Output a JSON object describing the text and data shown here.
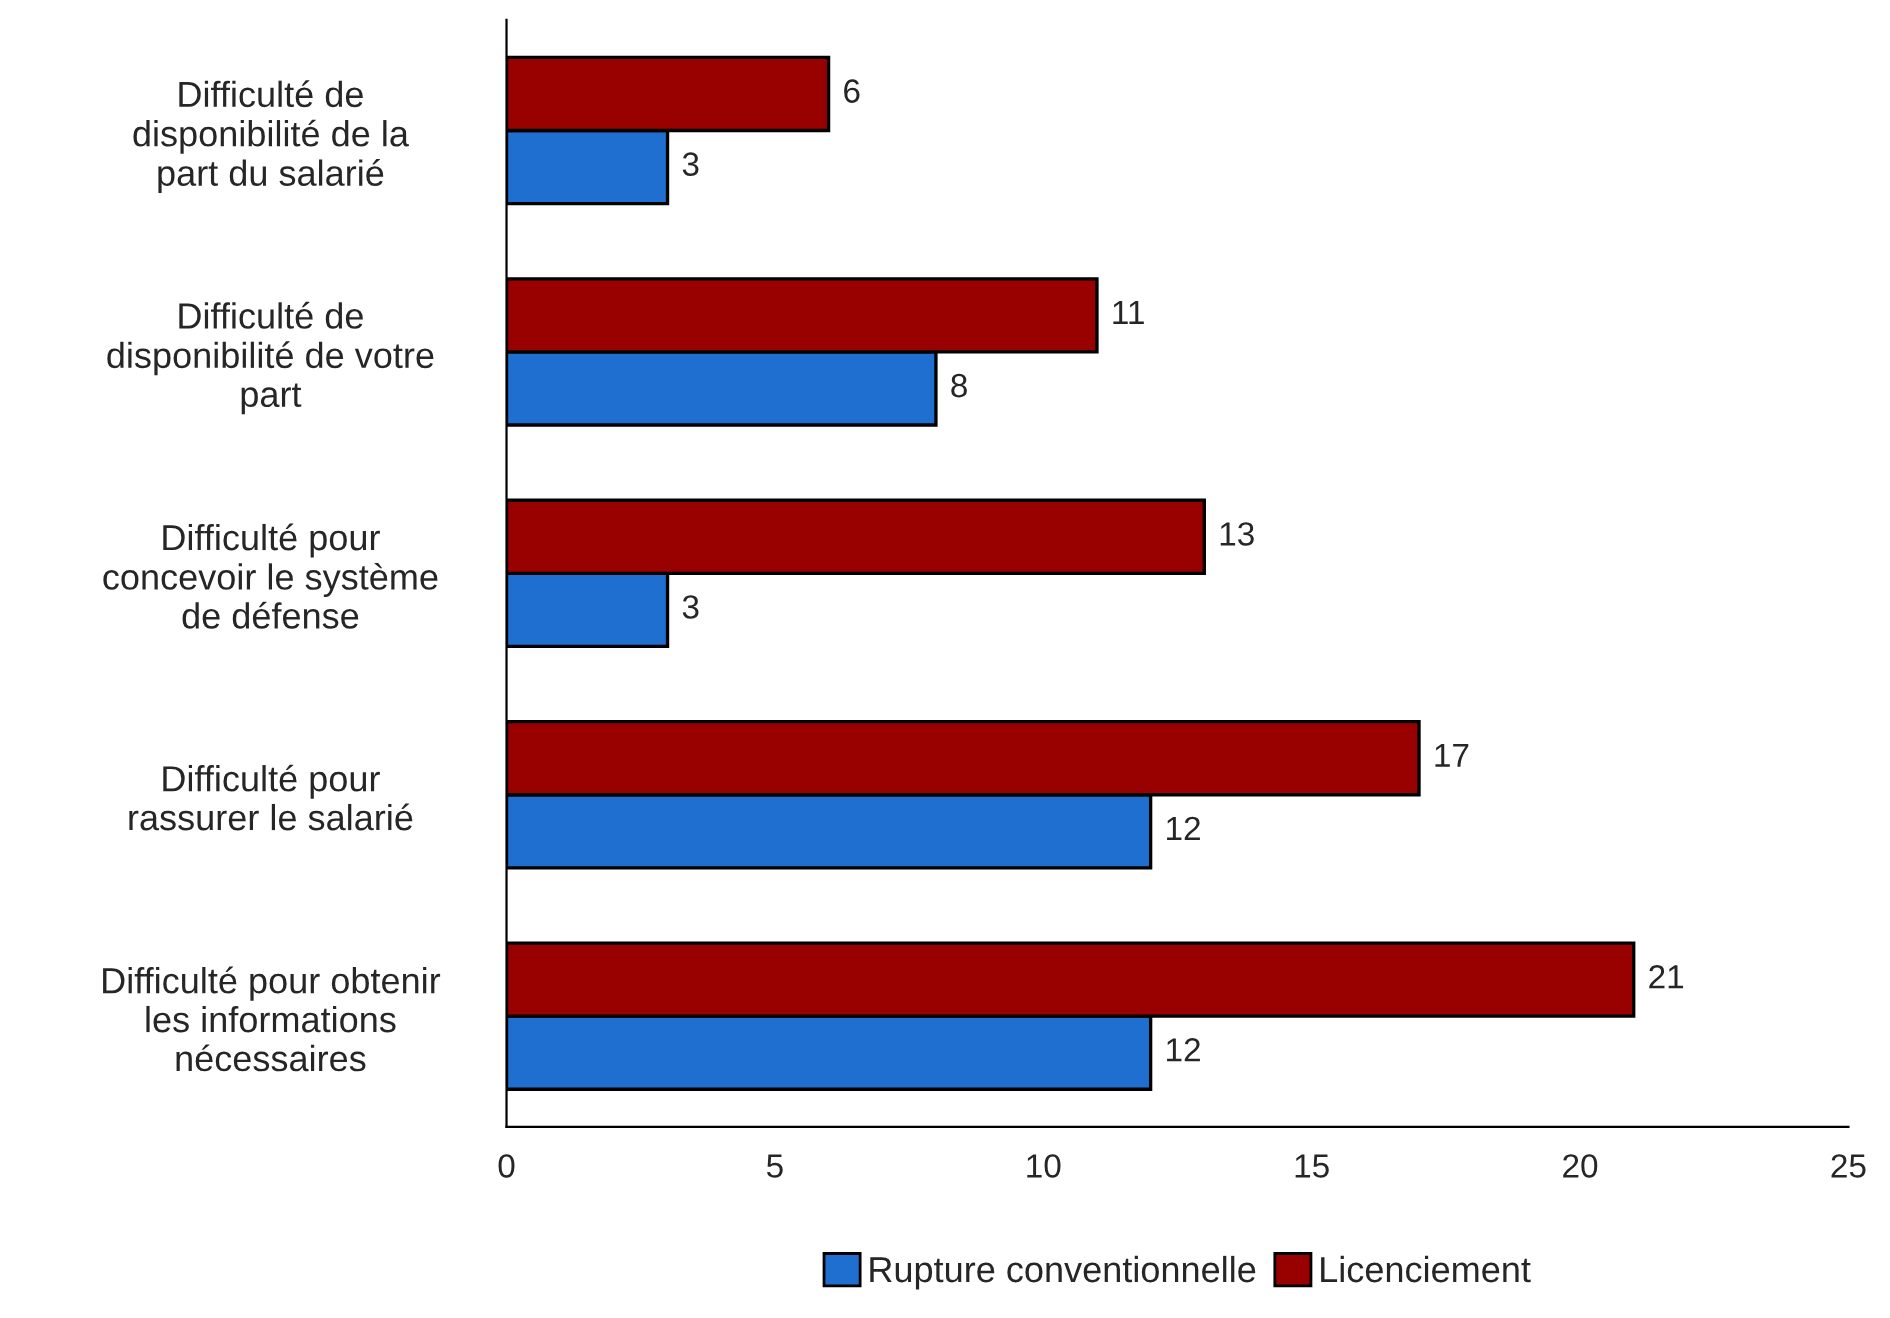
{
  "chart_data": {
    "type": "bar",
    "orientation": "horizontal",
    "categories": [
      "Difficulté de\ndisponibilité de la\npart du salarié",
      "Difficulté de\ndisponibilité de votre\npart",
      "Difficulté pour\nconcevoir le système\nde défense",
      "Difficulté pour\nrassurer le salarié",
      "Difficulté pour obtenir\nles informations\nnécessaires"
    ],
    "series": [
      {
        "name": "Rupture conventionnelle",
        "color": "#1f6fd1",
        "values": [
          3,
          8,
          3,
          12,
          12
        ]
      },
      {
        "name": "Licenciement",
        "color": "#990000",
        "values": [
          6,
          11,
          13,
          17,
          21
        ]
      }
    ],
    "xlim": [
      0,
      25
    ],
    "xticks": [
      0,
      5,
      10,
      15,
      20,
      25
    ],
    "data_labels": true,
    "grid": false,
    "legend": "bottom"
  }
}
